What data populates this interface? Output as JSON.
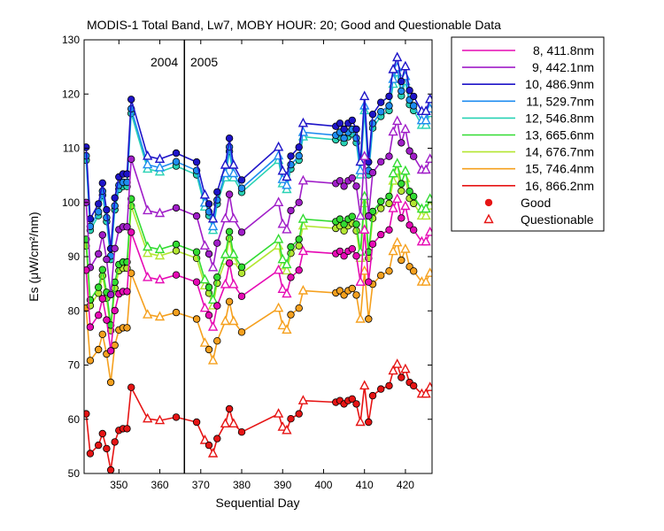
{
  "chart_data": {
    "type": "line",
    "title": "MODIS-1 Total Band,  Lw7, MOBY HOUR: 20;  Good and Questionable Data",
    "xlabel": "Sequential Day",
    "ylabel": "Es (μW/cm²/nm)",
    "xlim": [
      341.5,
      426.5
    ],
    "ylim": [
      50,
      130
    ],
    "xticks": [
      350,
      360,
      370,
      380,
      390,
      400,
      410,
      420
    ],
    "yticks": [
      50,
      60,
      70,
      80,
      90,
      100,
      110,
      120,
      130
    ],
    "grid": false,
    "legend_position": "outside-right",
    "annotations": [
      {
        "text": "2004",
        "x": 362.2,
        "y": 124.5
      },
      {
        "text": "2005",
        "x": 369.1,
        "y": 124.5
      }
    ],
    "year_boundary_x": 366,
    "marker_legend": [
      {
        "label": "Good",
        "marker": "circle"
      },
      {
        "label": "Questionable",
        "marker": "triangle"
      }
    ],
    "x": [
      342,
      343,
      345,
      346,
      347,
      348,
      349,
      350,
      351,
      352,
      353,
      357,
      360,
      364,
      369,
      371,
      372,
      373,
      374,
      376,
      377,
      378,
      380,
      389,
      390,
      391,
      392,
      394,
      395,
      403,
      404,
      405,
      406,
      407,
      408,
      409,
      410,
      411,
      412,
      414,
      416,
      417,
      418,
      419,
      420,
      421,
      422,
      424,
      425,
      426
    ],
    "series": [
      {
        "name": "8, 411.8nm",
        "color": "#e60ab4",
        "base": 87.5
      },
      {
        "name": "9, 442.1nm",
        "color": "#a01ec8",
        "base": 100.0
      },
      {
        "name": "10, 486.9nm",
        "color": "#1e14c8",
        "base": 110.2
      },
      {
        "name": "11, 529.7nm",
        "color": "#1e8cf0",
        "base": 108.6
      },
      {
        "name": "12, 546.8nm",
        "color": "#28d2b4",
        "base": 107.8
      },
      {
        "name": "13, 665.6nm",
        "color": "#32dc32",
        "base": 93.2
      },
      {
        "name": "14, 676.7nm",
        "color": "#b4e632",
        "base": 92.0
      },
      {
        "name": "15, 746.4nm",
        "color": "#f5a01e",
        "base": 80.5
      },
      {
        "name": "16, 866.2nm",
        "color": "#e61414",
        "base": 61.0
      }
    ],
    "relative_profile": [
      1.0,
      0.88,
      0.905,
      0.94,
      0.895,
      0.83,
      0.915,
      0.95,
      0.955,
      0.955,
      1.08,
      0.985,
      0.98,
      0.99,
      0.975,
      0.92,
      0.905,
      0.88,
      0.925,
      0.97,
      1.015,
      0.97,
      0.945,
      1.0,
      0.96,
      0.95,
      0.985,
      1.0,
      1.04,
      1.035,
      1.04,
      1.03,
      1.04,
      1.045,
      1.03,
      0.975,
      1.085,
      0.975,
      1.055,
      1.075,
      1.085,
      1.13,
      1.15,
      1.11,
      1.135,
      1.095,
      1.085,
      1.06,
      1.06,
      1.08
    ],
    "point_quality": [
      "good",
      "good",
      "good",
      "good",
      "good",
      "good",
      "good",
      "good",
      "good",
      "good",
      "good",
      "questionable",
      "questionable",
      "good",
      "good",
      "questionable",
      "good",
      "questionable",
      "good",
      "questionable",
      "good",
      "questionable",
      "good",
      "questionable",
      "questionable",
      "questionable",
      "good",
      "good",
      "questionable",
      "good",
      "good",
      "good",
      "good",
      "good",
      "good",
      "questionable",
      "questionable",
      "good",
      "good",
      "good",
      "good",
      "questionable",
      "questionable",
      "good",
      "questionable",
      "good",
      "good",
      "questionable",
      "questionable",
      "questionable"
    ]
  },
  "legend": [
    {
      "label": "8, 411.8nm"
    },
    {
      "label": "9, 442.1nm"
    },
    {
      "label": "10, 486.9nm"
    },
    {
      "label": "11, 529.7nm"
    },
    {
      "label": "12, 546.8nm"
    },
    {
      "label": "13, 665.6nm"
    },
    {
      "label": "14, 676.7nm"
    },
    {
      "label": "15, 746.4nm"
    },
    {
      "label": "16, 866.2nm"
    },
    {
      "label": "Good"
    },
    {
      "label": "Questionable"
    }
  ]
}
